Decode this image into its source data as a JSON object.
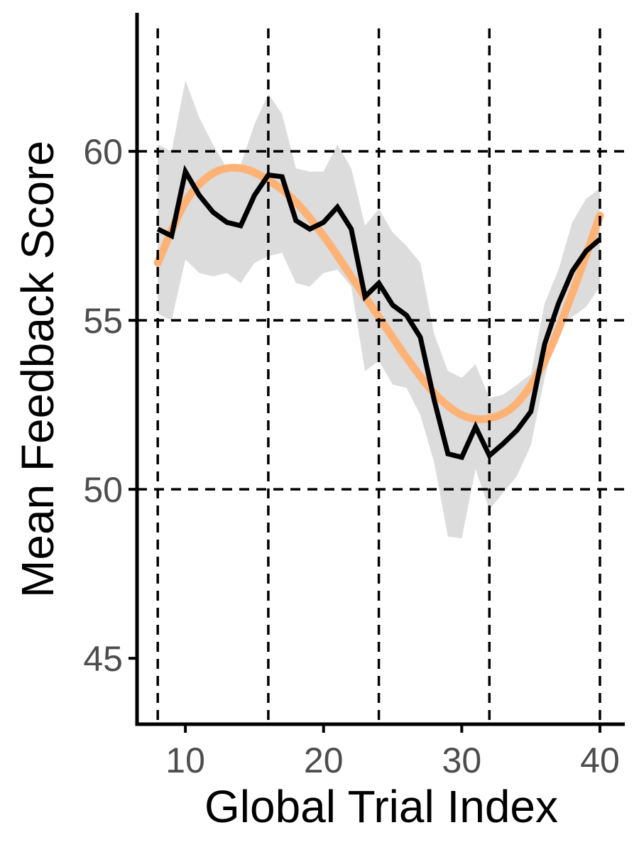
{
  "chart_data": {
    "type": "line",
    "title": "",
    "xlabel": "Global Trial Index",
    "ylabel": "Mean Feedback Score",
    "xlim": [
      6.5,
      41.8
    ],
    "ylim": [
      43.05,
      64.1
    ],
    "x_ticks": [
      10,
      20,
      30,
      40
    ],
    "y_ticks": [
      45,
      50,
      55,
      60
    ],
    "vertical_reference_lines": [
      8,
      16,
      24,
      32,
      40
    ],
    "horizontal_reference_lines": [
      50,
      55,
      60
    ],
    "grid": false,
    "legend": "none",
    "x": [
      8,
      9,
      10,
      11,
      12,
      13,
      14,
      15,
      16,
      17,
      18,
      19,
      20,
      21,
      22,
      23,
      24,
      25,
      26,
      27,
      28,
      29,
      30,
      31,
      32,
      33,
      34,
      35,
      36,
      37,
      38,
      39,
      40
    ],
    "series": [
      {
        "role": "mean",
        "values": [
          57.7,
          57.5,
          59.4,
          58.7,
          58.2,
          57.9,
          57.8,
          58.7,
          59.3,
          59.25,
          57.95,
          57.7,
          57.9,
          58.35,
          57.7,
          55.7,
          56.1,
          55.45,
          55.15,
          54.5,
          52.65,
          51.05,
          50.95,
          51.85,
          51.0,
          51.35,
          51.75,
          52.3,
          54.3,
          55.5,
          56.45,
          57.05,
          57.4
        ]
      },
      {
        "role": "confidence_band",
        "lower": [
          55.2,
          55.0,
          56.8,
          56.4,
          56.3,
          56.4,
          56.1,
          56.7,
          56.9,
          57.0,
          56.1,
          56.0,
          56.4,
          56.5,
          56.0,
          53.5,
          53.8,
          53.1,
          53.0,
          52.2,
          50.8,
          48.6,
          48.55,
          50.6,
          49.4,
          49.9,
          50.4,
          51.3,
          53.3,
          54.8,
          55.1,
          55.4,
          56.0
        ],
        "upper": [
          60.2,
          60.0,
          62.1,
          61.0,
          60.2,
          59.5,
          59.6,
          60.8,
          61.7,
          61.1,
          59.5,
          59.4,
          59.4,
          60.2,
          59.5,
          57.8,
          58.3,
          57.6,
          57.2,
          56.7,
          54.6,
          53.5,
          53.3,
          53.7,
          52.7,
          52.8,
          53.1,
          53.4,
          55.5,
          56.5,
          57.9,
          58.6,
          58.9
        ]
      },
      {
        "role": "smooth_fit",
        "x": [
          8,
          10,
          12,
          14,
          16,
          18,
          20,
          22,
          24,
          26,
          28,
          30,
          32,
          34,
          36,
          38,
          40
        ],
        "values": [
          56.7,
          58.5,
          59.35,
          59.5,
          59.15,
          58.5,
          57.5,
          56.3,
          55.1,
          53.9,
          52.85,
          52.2,
          52.1,
          52.55,
          53.8,
          55.8,
          58.1
        ]
      }
    ],
    "colors": {
      "mean_line": "#000000",
      "smooth_line": "#ffb275",
      "band_fill": "#dcdcdc",
      "reference_lines": "#000000",
      "axes": "#000000",
      "tick_labels": "#4d4d4d"
    }
  }
}
